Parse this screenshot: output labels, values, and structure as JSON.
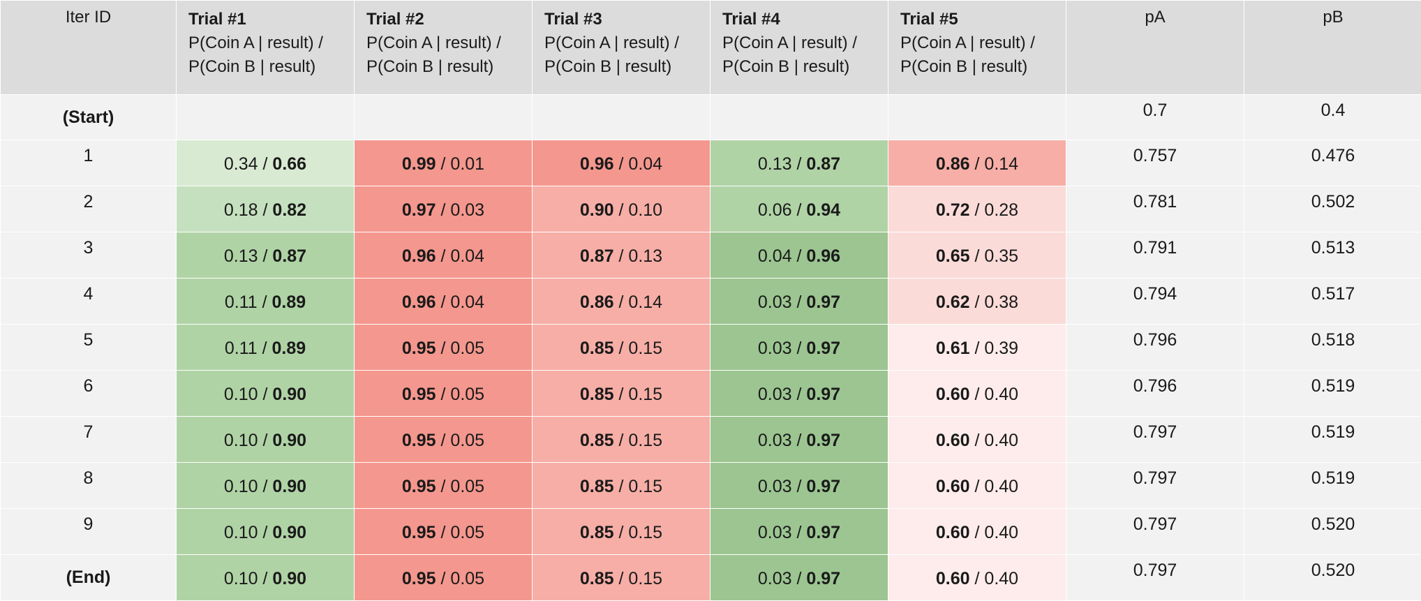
{
  "header": {
    "iter_label": "Iter ID",
    "trials": [
      {
        "title": "Trial #1",
        "line1": "P(Coin A | result) /",
        "line2": "P(Coin B | result)"
      },
      {
        "title": "Trial #2",
        "line1": "P(Coin A | result) /",
        "line2": "P(Coin B | result)"
      },
      {
        "title": "Trial #3",
        "line1": "P(Coin A | result) /",
        "line2": "P(Coin B | result)"
      },
      {
        "title": "Trial #4",
        "line1": "P(Coin A | result) /",
        "line2": "P(Coin B | result)"
      },
      {
        "title": "Trial #5",
        "line1": "P(Coin A | result) /",
        "line2": "P(Coin B | result)"
      }
    ],
    "pa_label": "pA",
    "pb_label": "pB"
  },
  "start_row": {
    "id": "(Start)",
    "pA": "0.7",
    "pB": "0.4"
  },
  "rows": [
    {
      "id": "1",
      "pA": "0.757",
      "pB": "0.476",
      "cells": [
        {
          "a": "0.34",
          "b": "0.66",
          "winner": "b",
          "color": "#d9ead3"
        },
        {
          "a": "0.99",
          "b": "0.01",
          "winner": "a",
          "color": "#f4978e"
        },
        {
          "a": "0.96",
          "b": "0.04",
          "winner": "a",
          "color": "#f4978e"
        },
        {
          "a": "0.13",
          "b": "0.87",
          "winner": "b",
          "color": "#b0d3a6"
        },
        {
          "a": "0.86",
          "b": "0.14",
          "winner": "a",
          "color": "#f6aea6"
        }
      ]
    },
    {
      "id": "2",
      "pA": "0.781",
      "pB": "0.502",
      "cells": [
        {
          "a": "0.18",
          "b": "0.82",
          "winner": "b",
          "color": "#c5e0be"
        },
        {
          "a": "0.97",
          "b": "0.03",
          "winner": "a",
          "color": "#f4978e"
        },
        {
          "a": "0.90",
          "b": "0.10",
          "winner": "a",
          "color": "#f6aea6"
        },
        {
          "a": "0.06",
          "b": "0.94",
          "winner": "b",
          "color": "#b0d3a6"
        },
        {
          "a": "0.72",
          "b": "0.28",
          "winner": "a",
          "color": "#fadbd8"
        }
      ]
    },
    {
      "id": "3",
      "pA": "0.791",
      "pB": "0.513",
      "cells": [
        {
          "a": "0.13",
          "b": "0.87",
          "winner": "b",
          "color": "#b0d3a6"
        },
        {
          "a": "0.96",
          "b": "0.04",
          "winner": "a",
          "color": "#f4978e"
        },
        {
          "a": "0.87",
          "b": "0.13",
          "winner": "a",
          "color": "#f6aea6"
        },
        {
          "a": "0.04",
          "b": "0.96",
          "winner": "b",
          "color": "#9cc591"
        },
        {
          "a": "0.65",
          "b": "0.35",
          "winner": "a",
          "color": "#fadbd8"
        }
      ]
    },
    {
      "id": "4",
      "pA": "0.794",
      "pB": "0.517",
      "cells": [
        {
          "a": "0.11",
          "b": "0.89",
          "winner": "b",
          "color": "#b0d3a6"
        },
        {
          "a": "0.96",
          "b": "0.04",
          "winner": "a",
          "color": "#f4978e"
        },
        {
          "a": "0.86",
          "b": "0.14",
          "winner": "a",
          "color": "#f6aea6"
        },
        {
          "a": "0.03",
          "b": "0.97",
          "winner": "b",
          "color": "#9cc591"
        },
        {
          "a": "0.62",
          "b": "0.38",
          "winner": "a",
          "color": "#fadbd8"
        }
      ]
    },
    {
      "id": "5",
      "pA": "0.796",
      "pB": "0.518",
      "cells": [
        {
          "a": "0.11",
          "b": "0.89",
          "winner": "b",
          "color": "#b0d3a6"
        },
        {
          "a": "0.95",
          "b": "0.05",
          "winner": "a",
          "color": "#f4978e"
        },
        {
          "a": "0.85",
          "b": "0.15",
          "winner": "a",
          "color": "#f6aea6"
        },
        {
          "a": "0.03",
          "b": "0.97",
          "winner": "b",
          "color": "#9cc591"
        },
        {
          "a": "0.61",
          "b": "0.39",
          "winner": "a",
          "color": "#fdeceb"
        }
      ]
    },
    {
      "id": "6",
      "pA": "0.796",
      "pB": "0.519",
      "cells": [
        {
          "a": "0.10",
          "b": "0.90",
          "winner": "b",
          "color": "#b0d3a6"
        },
        {
          "a": "0.95",
          "b": "0.05",
          "winner": "a",
          "color": "#f4978e"
        },
        {
          "a": "0.85",
          "b": "0.15",
          "winner": "a",
          "color": "#f6aea6"
        },
        {
          "a": "0.03",
          "b": "0.97",
          "winner": "b",
          "color": "#9cc591"
        },
        {
          "a": "0.60",
          "b": "0.40",
          "winner": "a",
          "color": "#fdeceb"
        }
      ]
    },
    {
      "id": "7",
      "pA": "0.797",
      "pB": "0.519",
      "cells": [
        {
          "a": "0.10",
          "b": "0.90",
          "winner": "b",
          "color": "#b0d3a6"
        },
        {
          "a": "0.95",
          "b": "0.05",
          "winner": "a",
          "color": "#f4978e"
        },
        {
          "a": "0.85",
          "b": "0.15",
          "winner": "a",
          "color": "#f6aea6"
        },
        {
          "a": "0.03",
          "b": "0.97",
          "winner": "b",
          "color": "#9cc591"
        },
        {
          "a": "0.60",
          "b": "0.40",
          "winner": "a",
          "color": "#fdeceb"
        }
      ]
    },
    {
      "id": "8",
      "pA": "0.797",
      "pB": "0.519",
      "cells": [
        {
          "a": "0.10",
          "b": "0.90",
          "winner": "b",
          "color": "#b0d3a6"
        },
        {
          "a": "0.95",
          "b": "0.05",
          "winner": "a",
          "color": "#f4978e"
        },
        {
          "a": "0.85",
          "b": "0.15",
          "winner": "a",
          "color": "#f6aea6"
        },
        {
          "a": "0.03",
          "b": "0.97",
          "winner": "b",
          "color": "#9cc591"
        },
        {
          "a": "0.60",
          "b": "0.40",
          "winner": "a",
          "color": "#fdeceb"
        }
      ]
    },
    {
      "id": "9",
      "pA": "0.797",
      "pB": "0.520",
      "cells": [
        {
          "a": "0.10",
          "b": "0.90",
          "winner": "b",
          "color": "#b0d3a6"
        },
        {
          "a": "0.95",
          "b": "0.05",
          "winner": "a",
          "color": "#f4978e"
        },
        {
          "a": "0.85",
          "b": "0.15",
          "winner": "a",
          "color": "#f6aea6"
        },
        {
          "a": "0.03",
          "b": "0.97",
          "winner": "b",
          "color": "#9cc591"
        },
        {
          "a": "0.60",
          "b": "0.40",
          "winner": "a",
          "color": "#fdeceb"
        }
      ]
    },
    {
      "id": "(End)",
      "special": true,
      "pA": "0.797",
      "pB": "0.520",
      "cells": [
        {
          "a": "0.10",
          "b": "0.90",
          "winner": "b",
          "color": "#b0d3a6"
        },
        {
          "a": "0.95",
          "b": "0.05",
          "winner": "a",
          "color": "#f4978e"
        },
        {
          "a": "0.85",
          "b": "0.15",
          "winner": "a",
          "color": "#f6aea6"
        },
        {
          "a": "0.03",
          "b": "0.97",
          "winner": "b",
          "color": "#9cc591"
        },
        {
          "a": "0.60",
          "b": "0.40",
          "winner": "a",
          "color": "#fdeceb"
        }
      ]
    }
  ]
}
